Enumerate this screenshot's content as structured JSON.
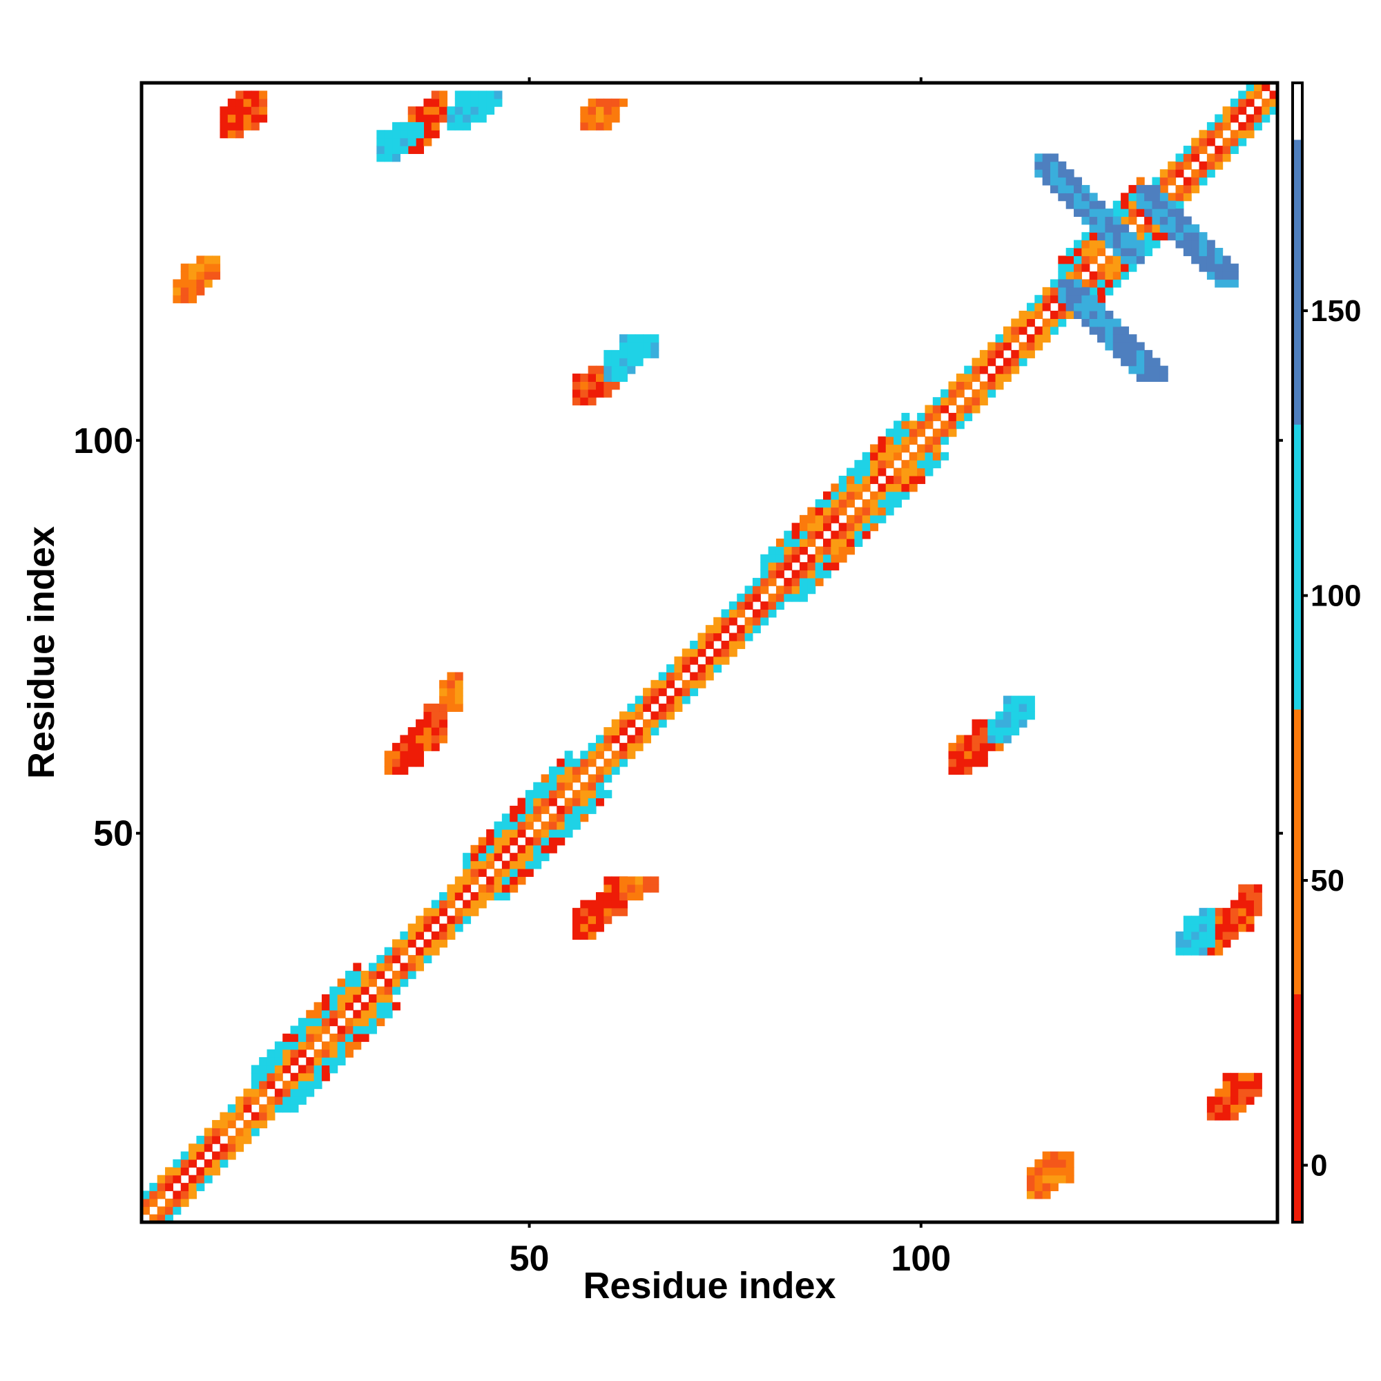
{
  "chart_data": {
    "type": "heatmap",
    "title": "",
    "xlabel": "Residue index",
    "ylabel": "Residue index",
    "xlim": [
      1,
      145
    ],
    "ylim": [
      1,
      145
    ],
    "x_ticks": [
      {
        "value": 50,
        "label": "50"
      },
      {
        "value": 100,
        "label": "100"
      }
    ],
    "y_ticks": [
      {
        "value": 50,
        "label": "50"
      },
      {
        "value": 100,
        "label": "100"
      }
    ],
    "colorbar": {
      "range": [
        -10,
        190
      ],
      "ticks": [
        {
          "value": 0,
          "label": "0"
        },
        {
          "value": 50,
          "label": "50"
        },
        {
          "value": 100,
          "label": "100"
        },
        {
          "value": 150,
          "label": "150"
        }
      ],
      "bands": [
        {
          "from": -10,
          "to": 30,
          "color": "#ee1c07"
        },
        {
          "from": 30,
          "to": 80,
          "color": "#fb7a0c"
        },
        {
          "from": 80,
          "to": 130,
          "color": "#1fd2e6"
        },
        {
          "from": 130,
          "to": 180,
          "color": "#4e7fbf"
        },
        {
          "from": 180,
          "to": 190,
          "color": "#ffffff"
        }
      ]
    },
    "palette": {
      "red": "#ee1c07",
      "dark_orange": "#f4571a",
      "orange": "#fb7a0c",
      "amber": "#fb9b12",
      "cyan": "#1fd2e6",
      "sky": "#3aaedc",
      "steel": "#4e7fbf"
    },
    "diagonal": {
      "description_values": "color value of contacts along main diagonal by offset band",
      "segments": [
        {
          "from": 1,
          "to": 145
        }
      ]
    },
    "blobs": [
      {
        "x": [
          11,
          16
        ],
        "y": [
          139,
          144
        ],
        "value": 20
      },
      {
        "x": [
          33,
          39
        ],
        "y": [
          137,
          144
        ],
        "value": 15
      },
      {
        "x": [
          31,
          36
        ],
        "y": [
          136,
          140
        ],
        "value": 100
      },
      {
        "x": [
          40,
          46
        ],
        "y": [
          140,
          144
        ],
        "value": 100
      },
      {
        "x": [
          57,
          63
        ],
        "y": [
          140,
          143
        ],
        "value": 50
      },
      {
        "x": [
          5,
          10
        ],
        "y": [
          118,
          123
        ],
        "value": 40
      },
      {
        "x": [
          56,
          62
        ],
        "y": [
          105,
          109
        ],
        "value": 10
      },
      {
        "x": [
          60,
          66
        ],
        "y": [
          108,
          113
        ],
        "value": 110
      },
      {
        "x": [
          32,
          39
        ],
        "y": [
          58,
          66
        ],
        "value": 15
      },
      {
        "x": [
          39,
          41
        ],
        "y": [
          66,
          70
        ],
        "value": 55
      },
      {
        "x": [
          56,
          62
        ],
        "y": [
          37,
          44
        ],
        "value": 15
      },
      {
        "x": [
          62,
          66
        ],
        "y": [
          42,
          44
        ],
        "value": 50
      },
      {
        "x": [
          104,
          110
        ],
        "y": [
          58,
          64
        ],
        "value": 10
      },
      {
        "x": [
          109,
          114
        ],
        "y": [
          62,
          67
        ],
        "value": 100
      },
      {
        "x": [
          136,
          143
        ],
        "y": [
          35,
          43
        ],
        "value": 15
      },
      {
        "x": [
          133,
          137
        ],
        "y": [
          35,
          40
        ],
        "value": 100
      },
      {
        "x": [
          137,
          143
        ],
        "y": [
          14,
          19
        ],
        "value": 20
      },
      {
        "x": [
          114,
          119
        ],
        "y": [
          4,
          9
        ],
        "value": 40
      },
      {
        "x": [
          115,
          128
        ],
        "y": [
          123,
          136
        ],
        "value": 140,
        "anti": true
      },
      {
        "x": [
          128,
          140
        ],
        "y": [
          120,
          132
        ],
        "value": 140,
        "anti": true
      },
      {
        "x": [
          118,
          131
        ],
        "y": [
          108,
          120
        ],
        "value": 140,
        "anti": true
      }
    ]
  }
}
